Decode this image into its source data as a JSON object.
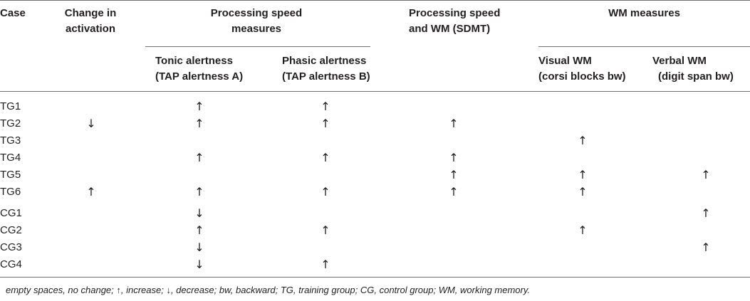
{
  "headers": {
    "case": "Case",
    "change_activation": [
      "Change in",
      "activation"
    ],
    "proc_speed": [
      "Processing speed",
      "measures"
    ],
    "proc_speed_wm": [
      "Processing speed",
      "and WM (SDMT)"
    ],
    "wm_measures": "WM measures",
    "tonic": [
      "Tonic alertness",
      "(TAP alertness A)"
    ],
    "phasic": [
      "Phasic alertness",
      "(TAP alertness B)"
    ],
    "visual_wm": [
      "Visual WM",
      "(corsi blocks bw)"
    ],
    "verbal_wm": [
      "Verbal WM",
      "(digit span bw)"
    ]
  },
  "rows": [
    {
      "case": "TG1",
      "activation": "",
      "tonic": "↑",
      "phasic": "↑",
      "sdmt": "",
      "visual": "",
      "verbal": ""
    },
    {
      "case": "TG2",
      "activation": "↓",
      "tonic": "↑",
      "phasic": "↑",
      "sdmt": "↑",
      "visual": "",
      "verbal": ""
    },
    {
      "case": "TG3",
      "activation": "",
      "tonic": "",
      "phasic": "",
      "sdmt": "",
      "visual": "↑",
      "verbal": ""
    },
    {
      "case": "TG4",
      "activation": "",
      "tonic": "↑",
      "phasic": "↑",
      "sdmt": "↑",
      "visual": "",
      "verbal": ""
    },
    {
      "case": "TG5",
      "activation": "",
      "tonic": "",
      "phasic": "",
      "sdmt": "↑",
      "visual": "↑",
      "verbal": "↑"
    },
    {
      "case": "TG6",
      "activation": "↑",
      "tonic": "↑",
      "phasic": "↑",
      "sdmt": "↑",
      "visual": "↑",
      "verbal": ""
    },
    {
      "case": "CG1",
      "activation": "",
      "tonic": "↓",
      "phasic": "",
      "sdmt": "",
      "visual": "",
      "verbal": "↑"
    },
    {
      "case": "CG2",
      "activation": "",
      "tonic": "↑",
      "phasic": "↑",
      "sdmt": "",
      "visual": "↑",
      "verbal": ""
    },
    {
      "case": "CG3",
      "activation": "",
      "tonic": "↓",
      "phasic": "",
      "sdmt": "",
      "visual": "",
      "verbal": "↑"
    },
    {
      "case": "CG4",
      "activation": "",
      "tonic": "↓",
      "phasic": "↑",
      "sdmt": "",
      "visual": "",
      "verbal": ""
    }
  ],
  "footnote": "empty spaces, no change; ↑, increase; ↓, decrease; bw, backward; TG, training group; CG, control group; WM, working memory."
}
